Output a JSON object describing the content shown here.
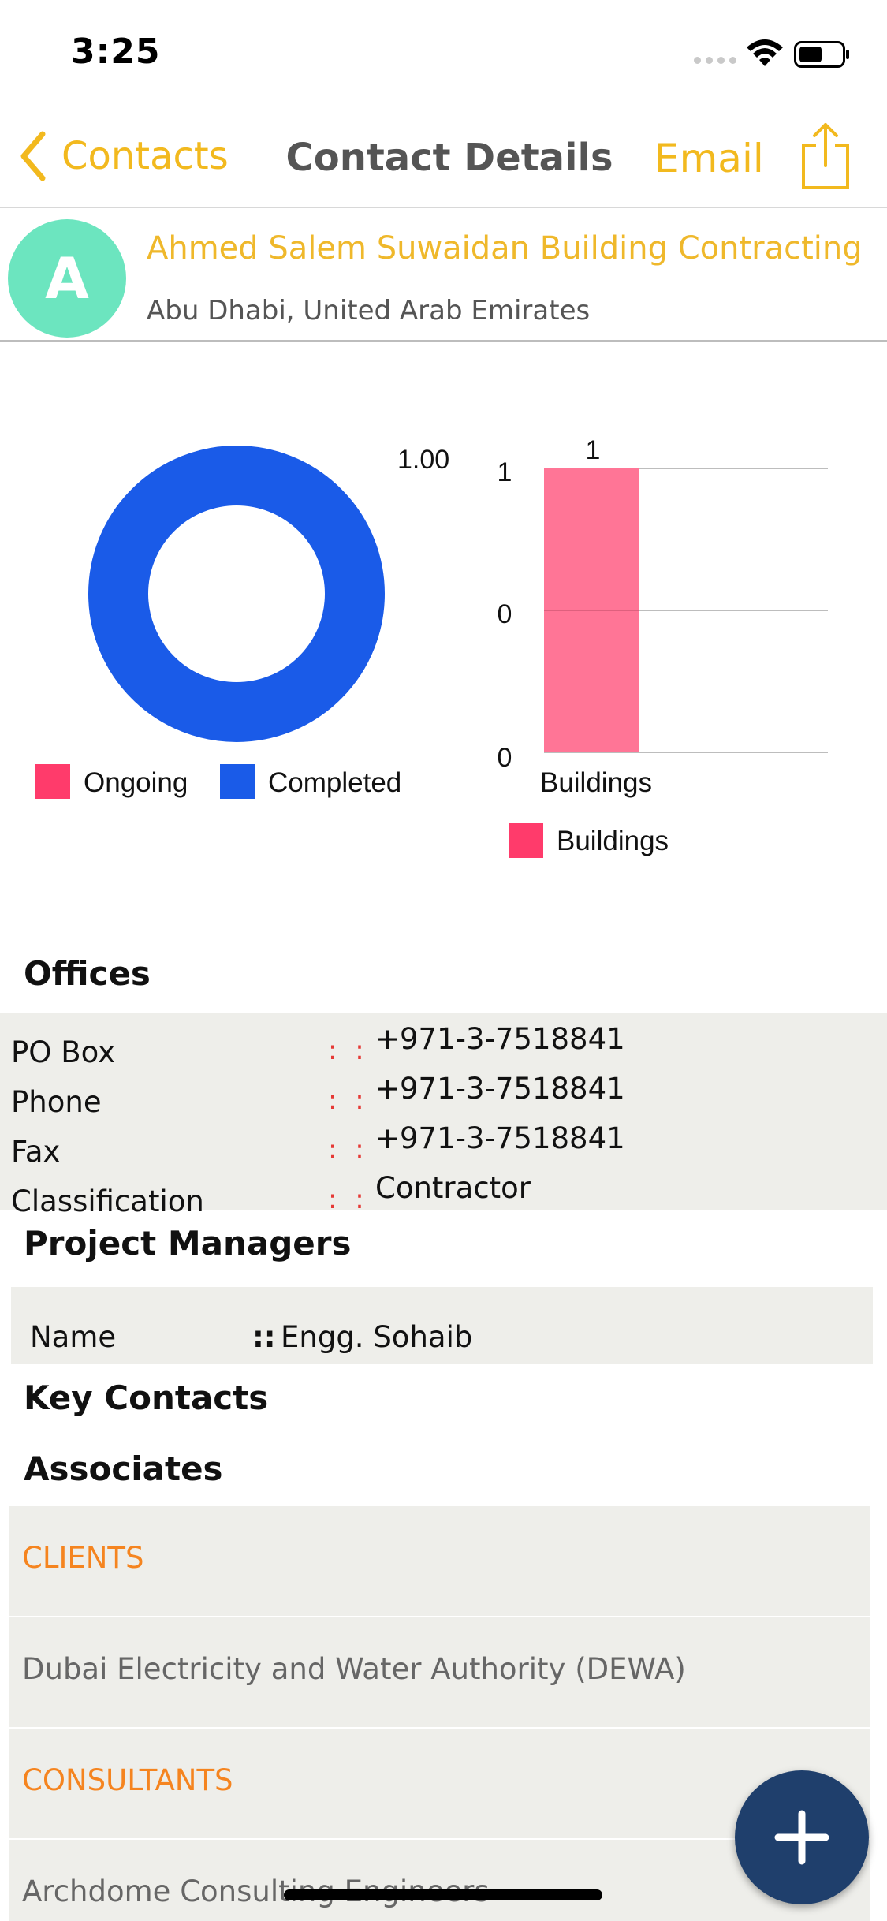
{
  "status_bar": {
    "time": "3:25"
  },
  "nav": {
    "back_label": "Contacts",
    "title": "Contact Details",
    "email_label": "Email",
    "share_icon": "share-icon"
  },
  "contact": {
    "avatar_initial": "A",
    "name": "Ahmed Salem Suwaidan Building Contracting",
    "location": "Abu Dhabi, United Arab Emirates"
  },
  "chart_data": [
    {
      "type": "pie",
      "donut": true,
      "series": [
        {
          "name": "Ongoing",
          "values": [
            0
          ],
          "color": "#ff3b6b"
        },
        {
          "name": "Completed",
          "values": [
            1.0
          ],
          "color": "#1a5be8"
        }
      ],
      "slice_label": "1.00",
      "legend": [
        "Ongoing",
        "Completed"
      ],
      "legend_position": "bottom"
    },
    {
      "type": "bar",
      "categories": [
        "Buildings"
      ],
      "series": [
        {
          "name": "Buildings",
          "values": [
            1
          ],
          "color": "#ff7596"
        }
      ],
      "data_labels": [
        "1"
      ],
      "y_ticks": [
        "1",
        "0",
        "0"
      ],
      "legend": [
        "Buildings"
      ],
      "legend_position": "bottom",
      "grid": true
    }
  ],
  "offices": {
    "title": "Offices",
    "rows": [
      {
        "label": "PO Box",
        "sep": ": :",
        "value": "+971-3-7518841"
      },
      {
        "label": "Phone",
        "sep": ": :",
        "value": "+971-3-7518841"
      },
      {
        "label": "Fax",
        "sep": ": :",
        "value": "+971-3-7518841"
      },
      {
        "label": "Classification",
        "sep": ": :",
        "value": "Contractor"
      }
    ]
  },
  "project_managers": {
    "title": "Project Managers",
    "name_label": "Name",
    "sep": "::",
    "name_value": "Engg. Sohaib"
  },
  "key_contacts": {
    "title": "Key Contacts"
  },
  "associates": {
    "title": "Associates",
    "items": [
      {
        "kind": "header",
        "text": "CLIENTS"
      },
      {
        "kind": "item",
        "text": "Dubai Electricity and Water Authority (DEWA)"
      },
      {
        "kind": "header",
        "text": "CONSULTANTS"
      },
      {
        "kind": "item",
        "text": "Archdome Consulting Engineers"
      }
    ]
  },
  "fab": {
    "icon": "plus-icon"
  }
}
